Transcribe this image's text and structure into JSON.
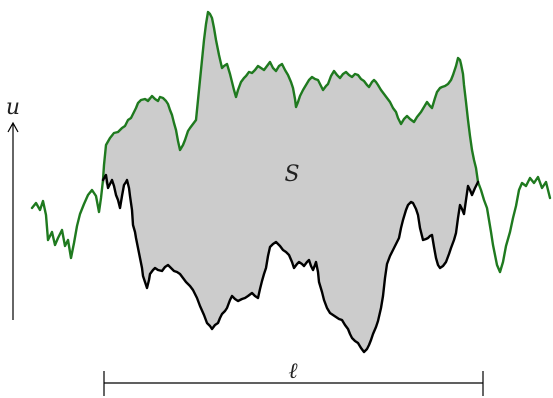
{
  "labels": {
    "axis": "u",
    "area": "S",
    "length": "ℓ"
  },
  "colors": {
    "upper_path": "#1f7a1f",
    "lower_path": "#000000",
    "fill": "#cccccc",
    "axis": "#000000"
  }
}
